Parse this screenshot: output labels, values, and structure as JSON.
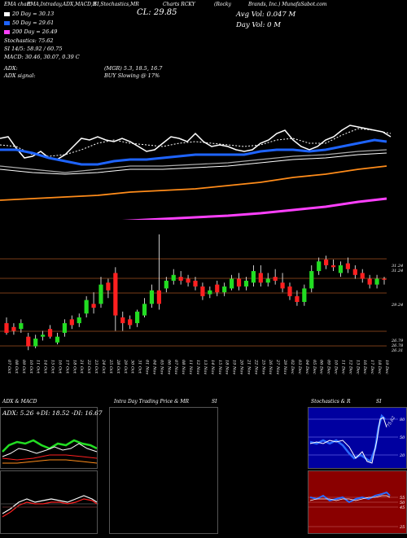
{
  "header": {
    "line1": [
      "EMA chart",
      "EMA,Intraday,ADX,MACD,R",
      "SI,Stochastics,MR",
      "Charts RCKY",
      "(Rocky",
      "Brands, Inc.) MunafaSabot.com"
    ],
    "cl_label": "CL: 29.85",
    "avg_vol": "Avg Vol: 0.047 M",
    "day_vol": "Day Vol: 0   M",
    "ema20": "20  Day = 30.13",
    "ema50": "50  Day = 29.61",
    "ema200": "200  Day = 26.49",
    "stoch": "Stochastics: 75.62",
    "si": "SI 14/5: 58.92 / 60.75",
    "macd": "MACD: 30.46, 30.07, 0.39 C",
    "adx": "ADX:",
    "adx_val": "(MGR) 5.3, 18.5, 16.7",
    "adx_signal": "ADX  signal:",
    "adx_signal_val": "BUY Slowing @ 17%"
  },
  "colors": {
    "ema20": "#ffffff",
    "ema50": "#1e64ff",
    "ema200": "#ffffff",
    "ema_orange": "#ff8c1a",
    "ema_magenta": "#ff40ff",
    "up": "#22dd22",
    "down": "#ff2020"
  },
  "price_levels": [
    "31.24",
    "31.24",
    "29.24",
    "26.79",
    "26.78",
    "26.31"
  ],
  "dates": [
    "07 Oct",
    "08 Oct",
    "09 Oct",
    "10 Oct",
    "11 Oct",
    "14 Oct",
    "15 Oct",
    "16 Oct",
    "17 Oct",
    "18 Oct",
    "21 Oct",
    "22 Oct",
    "23 Oct",
    "24 Oct",
    "25 Oct",
    "28 Oct",
    "29 Oct",
    "30 Oct",
    "31 Oct",
    "01 Nov",
    "04 Nov",
    "05 Nov",
    "06 Nov",
    "07 Nov",
    "08 Nov",
    "11 Nov",
    "12 Nov",
    "13 Nov",
    "14 Nov",
    "15 Nov",
    "18 Nov",
    "19 Nov",
    "20 Nov",
    "21 Nov",
    "22 Nov",
    "25 Nov",
    "26 Nov",
    "27 Nov",
    "29 Nov",
    "02 Dec",
    "03 Dec",
    "04 Dec",
    "05 Dec",
    "06 Dec",
    "09 Dec",
    "10 Dec",
    "11 Dec",
    "12 Dec",
    "13 Dec",
    "16 Dec",
    "17 Dec",
    "18 Dec",
    "19 Dec"
  ],
  "panels": {
    "adx_title": "ADX  & MACD",
    "adx_values": "ADX: 5.26   +DI: 18.52  -DI: 16.67",
    "intraday_title": "Intra Day Trading Price  & MR",
    "intraday_si": "SI",
    "stoch_title": "Stochastics & R",
    "stoch_si": "SI",
    "stoch_ticks": [
      "80",
      "50",
      "20"
    ],
    "stoch_value": "75.62",
    "si_ticks": [
      "55",
      "50",
      "45",
      "25"
    ],
    "rsi_value": "58.92"
  },
  "chart_data": {
    "type": "candlestick",
    "candles": [
      {
        "d": "07 Oct",
        "o": 27.6,
        "c": 27.1,
        "h": 27.9,
        "l": 27.0
      },
      {
        "d": "08 Oct",
        "o": 27.4,
        "c": 27.2,
        "h": 27.6,
        "l": 27.0
      },
      {
        "d": "09 Oct",
        "o": 27.3,
        "c": 27.6,
        "h": 27.8,
        "l": 27.1
      },
      {
        "d": "10 Oct",
        "o": 26.9,
        "c": 26.4,
        "h": 27.1,
        "l": 26.2
      },
      {
        "d": "11 Oct",
        "o": 26.4,
        "c": 26.8,
        "h": 27.0,
        "l": 26.3
      },
      {
        "d": "14 Oct",
        "o": 26.9,
        "c": 27.0,
        "h": 27.2,
        "l": 26.7
      },
      {
        "d": "15 Oct",
        "o": 27.3,
        "c": 26.9,
        "h": 27.5,
        "l": 26.8
      },
      {
        "d": "16 Oct",
        "o": 26.6,
        "c": 26.9,
        "h": 27.1,
        "l": 26.5
      },
      {
        "d": "17 Oct",
        "o": 27.1,
        "c": 27.6,
        "h": 27.8,
        "l": 26.9
      },
      {
        "d": "18 Oct",
        "o": 27.8,
        "c": 27.5,
        "h": 28.0,
        "l": 27.3
      },
      {
        "d": "21 Oct",
        "o": 27.6,
        "c": 27.9,
        "h": 28.1,
        "l": 27.4
      },
      {
        "d": "22 Oct",
        "o": 28.1,
        "c": 28.8,
        "h": 29.0,
        "l": 27.9
      },
      {
        "d": "23 Oct",
        "o": 28.6,
        "c": 28.4,
        "h": 29.2,
        "l": 28.1
      },
      {
        "d": "24 Oct",
        "o": 28.6,
        "c": 29.6,
        "h": 30.0,
        "l": 28.4
      },
      {
        "d": "25 Oct",
        "o": 29.7,
        "c": 29.3,
        "h": 29.9,
        "l": 28.9
      },
      {
        "d": "28 Oct",
        "o": 30.2,
        "c": 28.0,
        "h": 30.5,
        "l": 27.2
      },
      {
        "d": "29 Oct",
        "o": 27.9,
        "c": 27.6,
        "h": 28.2,
        "l": 27.2
      },
      {
        "d": "30 Oct",
        "o": 27.8,
        "c": 27.5,
        "h": 28.0,
        "l": 27.3
      },
      {
        "d": "31 Oct",
        "o": 27.6,
        "c": 28.2,
        "h": 28.3,
        "l": 27.4
      },
      {
        "d": "01 Nov",
        "o": 28.0,
        "c": 28.6,
        "h": 28.9,
        "l": 27.9
      },
      {
        "d": "04 Nov",
        "o": 28.6,
        "c": 29.3,
        "h": 29.6,
        "l": 28.4
      },
      {
        "d": "05 Nov",
        "o": 29.3,
        "c": 28.6,
        "h": 32.2,
        "l": 28.3
      },
      {
        "d": "06 Nov",
        "o": 29.4,
        "c": 29.8,
        "h": 30.0,
        "l": 29.2
      },
      {
        "d": "07 Nov",
        "o": 29.8,
        "c": 30.1,
        "h": 30.4,
        "l": 29.6
      },
      {
        "d": "08 Nov",
        "o": 30.0,
        "c": 29.8,
        "h": 30.3,
        "l": 29.6
      },
      {
        "d": "11 Nov",
        "o": 29.9,
        "c": 29.7,
        "h": 30.1,
        "l": 29.5
      },
      {
        "d": "12 Nov",
        "o": 29.8,
        "c": 29.5,
        "h": 30.0,
        "l": 29.3
      },
      {
        "d": "13 Nov",
        "o": 29.5,
        "c": 29.0,
        "h": 29.7,
        "l": 28.8
      },
      {
        "d": "14 Nov",
        "o": 29.1,
        "c": 29.3,
        "h": 29.5,
        "l": 28.9
      },
      {
        "d": "15 Nov",
        "o": 29.6,
        "c": 29.2,
        "h": 29.8,
        "l": 29.0
      },
      {
        "d": "18 Nov",
        "o": 29.2,
        "c": 29.5,
        "h": 29.7,
        "l": 29.0
      },
      {
        "d": "19 Nov",
        "o": 29.4,
        "c": 29.9,
        "h": 30.1,
        "l": 29.3
      },
      {
        "d": "20 Nov",
        "o": 29.9,
        "c": 29.5,
        "h": 30.2,
        "l": 29.3
      },
      {
        "d": "21 Nov",
        "o": 29.5,
        "c": 29.8,
        "h": 30.0,
        "l": 29.3
      },
      {
        "d": "22 Nov",
        "o": 29.7,
        "c": 30.3,
        "h": 30.6,
        "l": 29.5
      },
      {
        "d": "25 Nov",
        "o": 30.2,
        "c": 29.7,
        "h": 30.6,
        "l": 29.5
      },
      {
        "d": "26 Nov",
        "o": 29.7,
        "c": 29.9,
        "h": 30.2,
        "l": 29.5
      },
      {
        "d": "27 Nov",
        "o": 30.0,
        "c": 29.8,
        "h": 30.4,
        "l": 29.6
      },
      {
        "d": "29 Nov",
        "o": 29.7,
        "c": 29.4,
        "h": 30.2,
        "l": 29.2
      },
      {
        "d": "02 Dec",
        "o": 29.5,
        "c": 29.0,
        "h": 29.7,
        "l": 28.8
      },
      {
        "d": "03 Dec",
        "o": 29.0,
        "c": 28.7,
        "h": 29.3,
        "l": 28.5
      },
      {
        "d": "04 Dec",
        "o": 28.7,
        "c": 29.4,
        "h": 29.6,
        "l": 28.5
      },
      {
        "d": "05 Dec",
        "o": 29.4,
        "c": 30.3,
        "h": 30.6,
        "l": 29.2
      },
      {
        "d": "06 Dec",
        "o": 30.3,
        "c": 30.8,
        "h": 31.0,
        "l": 30.1
      },
      {
        "d": "09 Dec",
        "o": 30.9,
        "c": 30.6,
        "h": 31.1,
        "l": 30.4
      },
      {
        "d": "10 Dec",
        "o": 30.6,
        "c": 30.5,
        "h": 30.9,
        "l": 30.3
      },
      {
        "d": "11 Dec",
        "o": 30.2,
        "c": 30.6,
        "h": 30.8,
        "l": 30.0
      },
      {
        "d": "12 Dec",
        "o": 30.7,
        "c": 30.4,
        "h": 31.0,
        "l": 30.2
      },
      {
        "d": "13 Dec",
        "o": 30.4,
        "c": 30.1,
        "h": 30.6,
        "l": 29.9
      },
      {
        "d": "16 Dec",
        "o": 30.2,
        "c": 29.9,
        "h": 30.4,
        "l": 29.7
      },
      {
        "d": "17 Dec",
        "o": 29.9,
        "c": 29.6,
        "h": 30.1,
        "l": 29.4
      },
      {
        "d": "18 Dec",
        "o": 29.6,
        "c": 29.9,
        "h": 30.1,
        "l": 29.4
      },
      {
        "d": "19 Dec",
        "o": 29.9,
        "c": 29.85,
        "h": 30.0,
        "l": 29.6
      }
    ],
    "ylim": [
      26.0,
      32.2
    ]
  }
}
